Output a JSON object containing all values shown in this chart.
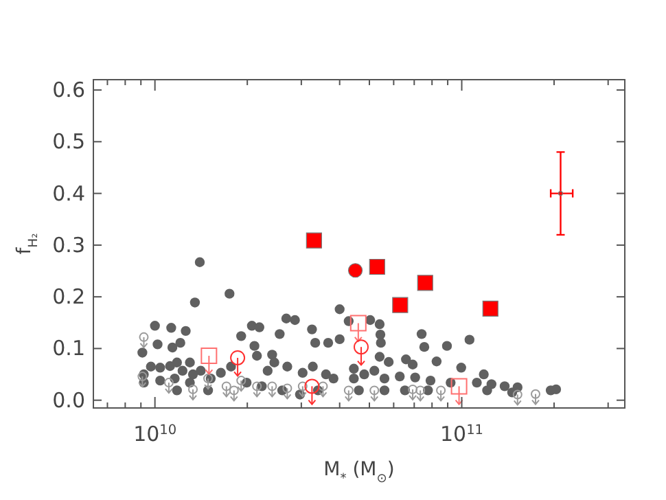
{
  "chart_data": {
    "type": "scatter",
    "xlabel": "M$_{*}$ (M$_{⊙}$)",
    "ylabel": "f$_{H₂}$",
    "log": "x",
    "xlim": [
      6300000000.0,
      340000000000.0
    ],
    "xticks": [
      {
        "value": 7000000000.0,
        "label": null
      },
      {
        "value": 8000000000.0,
        "label": null
      },
      {
        "value": 9000000000.0,
        "label": null
      },
      {
        "value": 10000000000.0,
        "label": "10$^{10}$"
      },
      {
        "value": 20000000000.0,
        "label": null
      },
      {
        "value": 30000000000.0,
        "label": null
      },
      {
        "value": 40000000000.0,
        "label": null
      },
      {
        "value": 50000000000.0,
        "label": null
      },
      {
        "value": 60000000000.0,
        "label": null
      },
      {
        "value": 70000000000.0,
        "label": null
      },
      {
        "value": 80000000000.0,
        "label": null
      },
      {
        "value": 90000000000.0,
        "label": null
      },
      {
        "value": 100000000000.0,
        "label": "10$^{11}$"
      },
      {
        "value": 200000000000.0,
        "label": null
      },
      {
        "value": 300000000000.0,
        "label": null
      }
    ],
    "ylim": [
      -0.015,
      0.62
    ],
    "yticks": [
      {
        "value": 0,
        "label": "0.0"
      },
      {
        "value": 0.1,
        "label": "0.1"
      },
      {
        "value": 0.2,
        "label": "0.2"
      },
      {
        "value": 0.3,
        "label": "0.3"
      },
      {
        "value": 0.4,
        "label": "0.4"
      },
      {
        "value": 0.5,
        "label": "0.5"
      },
      {
        "value": 0.6,
        "label": "0.6"
      }
    ],
    "series": [
      {
        "color": "#9a9a9a",
        "marker": "circle",
        "x": [
          9200000000.0,
          9100000000.0,
          11100000000.0,
          13300000000.0,
          14900000000.0,
          17100000000.0,
          18100000000.0,
          19100000000.0,
          21500000000.0,
          24100000000.0,
          27000000000.0,
          30300000000.0,
          35300000000.0,
          42800000000.0,
          51900000000.0,
          69200000000.0,
          73300000000.0,
          85500000000.0,
          152000000000.0,
          174000000000.0
        ],
        "values": [
          0.122,
          0.046,
          0.034,
          0.021,
          0.042,
          0.027,
          0.019,
          0.038,
          0.027,
          0.027,
          0.023,
          0.027,
          0.027,
          0.019,
          0.019,
          0.021,
          0.019,
          0.019,
          0.011,
          0.012
        ],
        "errors": [
          [
            0.102,
            0.122
          ],
          [
            0.026,
            0.046
          ],
          [
            0.014,
            0.034
          ],
          [
            0.001,
            0.021
          ],
          [
            0.022,
            0.042
          ],
          [
            0.007,
            0.027
          ],
          [
            -0.001,
            0.019
          ],
          [
            0.018,
            0.038
          ],
          [
            0.007,
            0.027
          ],
          [
            0.007,
            0.027
          ],
          [
            0.003,
            0.023
          ],
          [
            0.007,
            0.027
          ],
          [
            0.007,
            0.027
          ],
          [
            -0.001,
            0.019
          ],
          [
            -0.001,
            0.019
          ],
          [
            0.001,
            0.021
          ],
          [
            -0.001,
            0.019
          ],
          [
            -0.001,
            0.019
          ],
          [
            -0.009,
            0.011
          ],
          [
            -0.008,
            0.012
          ]
        ]
      },
      {
        "color": "#606060",
        "marker": "circle",
        "x": [
          14000000000.0,
          13500000000.0,
          17500000000.0,
          9100000000.0,
          10000000000.0,
          11300000000.0,
          12600000000.0,
          10200000000.0,
          11400000000.0,
          12100000000.0,
          9200000000.0,
          9700000000.0,
          10400000000.0,
          11200000000.0,
          11800000000.0,
          12300000000.0,
          13000000000.0,
          14100000000.0,
          15200000000.0,
          16400000000.0,
          17700000000.0,
          9200000000.0,
          10400000000.0,
          11600000000.0,
          13000000000.0,
          14900000000.0,
          19100000000.0,
          20700000000.0,
          21900000000.0,
          21100000000.0,
          21500000000.0,
          24100000000.0,
          25500000000.0,
          26800000000.0,
          28600000000.0,
          32500000000.0,
          33300000000.0,
          36700000000.0,
          40000000000.0,
          40000000000.0,
          23300000000.0,
          24500000000.0,
          27000000000.0,
          30300000000.0,
          32700000000.0,
          36100000000.0,
          38200000000.0,
          19900000000.0,
          22300000000.0,
          26000000000.0,
          29700000000.0,
          34000000000.0,
          11800000000.0,
          13300000000.0,
          42800000000.0,
          50300000000.0,
          54000000000.0,
          54300000000.0,
          54500000000.0,
          74000000000.0,
          75500000000.0,
          89500000000.0,
          106000000000.0,
          54000000000.0,
          57800000000.0,
          65800000000.0,
          69200000000.0,
          82800000000.0,
          99600000000.0,
          118000000000.0,
          44500000000.0,
          51900000000.0,
          44500000000.0,
          48100000000.0,
          56000000000.0,
          62800000000.0,
          70500000000.0,
          79100000000.0,
          92000000000.0,
          112000000000.0,
          125000000000.0,
          138000000000.0,
          152000000000.0,
          195000000000.0,
          203000000000.0,
          46200000000.0,
          56000000000.0,
          65300000000.0,
          77600000000.0,
          121000000000.0,
          146000000000.0
        ],
        "values": [
          0.267,
          0.189,
          0.206,
          0.092,
          0.144,
          0.14,
          0.134,
          0.108,
          0.102,
          0.111,
          0.05,
          0.065,
          0.063,
          0.066,
          0.073,
          0.057,
          0.073,
          0.057,
          0.042,
          0.053,
          0.065,
          0.034,
          0.038,
          0.042,
          0.034,
          0.019,
          0.124,
          0.144,
          0.141,
          0.105,
          0.086,
          0.088,
          0.128,
          0.158,
          0.155,
          0.137,
          0.111,
          0.111,
          0.176,
          0.118,
          0.057,
          0.073,
          0.065,
          0.053,
          0.065,
          0.05,
          0.042,
          0.034,
          0.027,
          0.019,
          0.011,
          0.019,
          0.019,
          0.05,
          0.153,
          0.155,
          0.147,
          0.127,
          0.111,
          0.128,
          0.103,
          0.105,
          0.117,
          0.084,
          0.074,
          0.079,
          0.069,
          0.075,
          0.063,
          0.05,
          0.061,
          0.057,
          0.042,
          0.05,
          0.042,
          0.046,
          0.044,
          0.038,
          0.034,
          0.034,
          0.031,
          0.027,
          0.025,
          0.019,
          0.021,
          0.019,
          0.019,
          0.019,
          0.019,
          0.019,
          0.015
        ]
      },
      {
        "color": "#ff0000",
        "marker": "square",
        "x": [
          33000000000.0,
          53000000000.0,
          76000000000.0,
          63000000000.0,
          124000000000.0
        ],
        "values": [
          0.309,
          0.258,
          0.227,
          0.184,
          0.177
        ]
      },
      {
        "color": "#ff0000",
        "marker": "circle",
        "x": [
          45000000000.0
        ],
        "values": [
          0.251
        ]
      },
      {
        "color": "#ff7070",
        "marker": "square",
        "x": [
          15000000000.0,
          46000000000.0,
          98000000000.0
        ],
        "values": [
          0.086,
          0.149,
          0.027
        ],
        "errors": [
          [
            0.051,
            0.086
          ],
          [
            0.114,
            0.149
          ],
          [
            -0.008,
            0.027
          ]
        ]
      },
      {
        "color": "#ff3030",
        "marker": "circle",
        "x": [
          18600000000.0,
          47000000000.0,
          32500000000.0
        ],
        "values": [
          0.082,
          0.103,
          0.027
        ],
        "errors": [
          [
            0.047,
            0.082
          ],
          [
            0.068,
            0.103
          ],
          [
            -0.008,
            0.027
          ]
        ]
      },
      {
        "color": "#ff0000",
        "x": [
          210000000000.0
        ],
        "values": [
          0.4
        ],
        "errors": [
          [
            0.32,
            0.48
          ]
        ],
        "xerrors": [
          [
            195000000000.0,
            230000000000.0
          ]
        ]
      }
    ]
  }
}
